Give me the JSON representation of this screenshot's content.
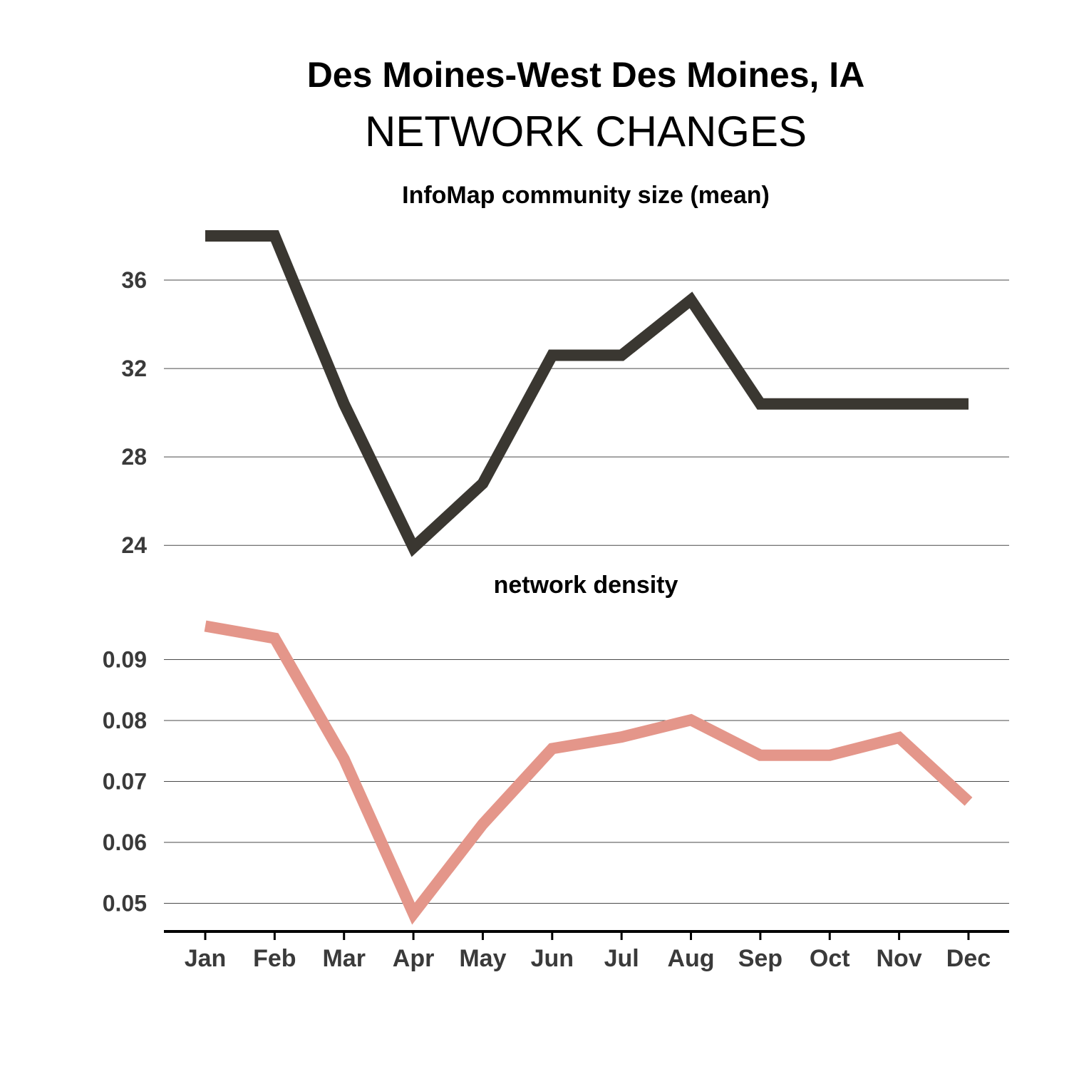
{
  "page": {
    "title": "Des Moines-West Des Moines, IA",
    "subtitle": "NETWORK CHANGES"
  },
  "chart_data": [
    {
      "type": "line",
      "title": "InfoMap community size (mean)",
      "categories": [
        "Jan",
        "Feb",
        "Mar",
        "Apr",
        "May",
        "Jun",
        "Jul",
        "Aug",
        "Sep",
        "Oct",
        "Nov",
        "Dec"
      ],
      "values": [
        38.0,
        38.0,
        30.4,
        23.9,
        26.8,
        32.6,
        32.6,
        35.1,
        30.4,
        30.4,
        30.4,
        30.4
      ],
      "yticks": [
        24,
        28,
        32,
        36
      ],
      "ytick_labels": [
        "24",
        "28",
        "32",
        "36"
      ],
      "ylim": [
        23.2,
        39.0
      ],
      "color": "#3a3731",
      "grid": true
    },
    {
      "type": "line",
      "title": "network density",
      "categories": [
        "Jan",
        "Feb",
        "Mar",
        "Apr",
        "May",
        "Jun",
        "Jul",
        "Aug",
        "Sep",
        "Oct",
        "Nov",
        "Dec"
      ],
      "values": [
        0.0955,
        0.0935,
        0.0737,
        0.0483,
        0.063,
        0.0754,
        0.0773,
        0.0801,
        0.0743,
        0.0743,
        0.0772,
        0.0667
      ],
      "yticks": [
        0.05,
        0.06,
        0.07,
        0.08,
        0.09
      ],
      "ytick_labels": [
        "0.05",
        "0.06",
        "0.07",
        "0.08",
        "0.09"
      ],
      "ylim": [
        0.0462,
        0.0979
      ],
      "color": "#e4968a",
      "grid": true
    }
  ]
}
